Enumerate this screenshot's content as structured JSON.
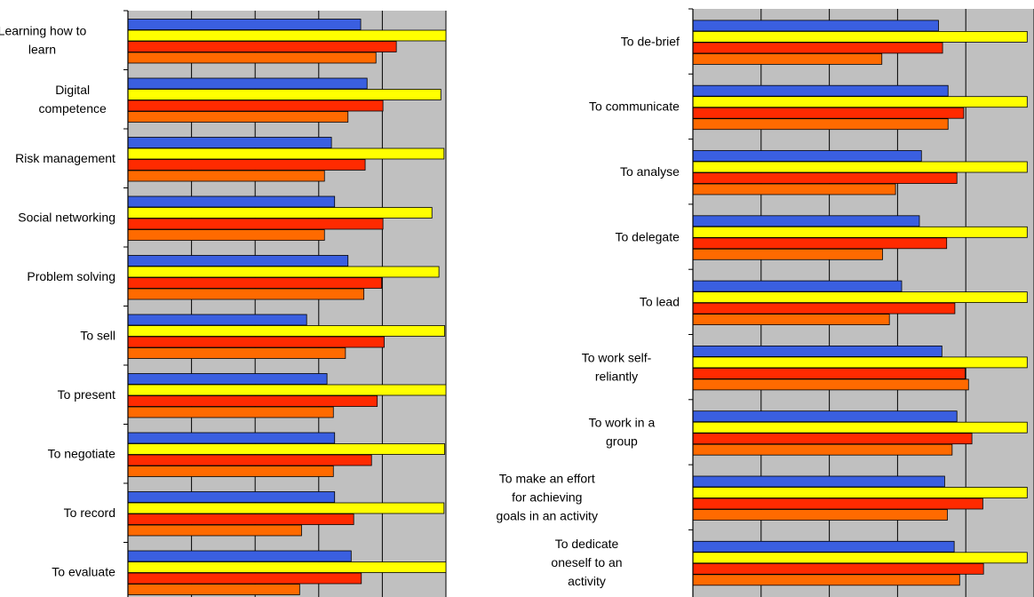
{
  "colors": {
    "plot_bg": "#c0c0c0",
    "grid": "#000000",
    "bar_stroke": "#000000"
  },
  "chart_data": [
    {
      "type": "bar",
      "orientation": "horizontal",
      "grid": true,
      "xlim": [
        0,
        5
      ],
      "series_colors": [
        "#3a5fe0",
        "#ffff00",
        "#ff2a00",
        "#ff6a00"
      ],
      "categories": [
        "Learning how to learn",
        "Digital competence",
        "Risk management",
        "Social networking",
        "Problem solving",
        "To sell",
        "To present",
        "To negotiate",
        "To record",
        "To evaluate"
      ],
      "series": [
        {
          "values": [
            3.66,
            3.76,
            3.2,
            3.25,
            3.46,
            2.81,
            3.13,
            3.25,
            3.25,
            3.51
          ]
        },
        {
          "values": [
            5.0,
            4.92,
            4.97,
            4.78,
            4.89,
            4.98,
            5.0,
            4.98,
            4.97,
            5.0
          ]
        },
        {
          "values": [
            4.22,
            4.01,
            3.73,
            4.01,
            3.99,
            4.03,
            3.92,
            3.83,
            3.55,
            3.67
          ]
        },
        {
          "values": [
            3.9,
            3.46,
            3.09,
            3.09,
            3.71,
            3.42,
            3.23,
            3.23,
            2.73,
            2.7
          ]
        }
      ]
    },
    {
      "type": "bar",
      "orientation": "horizontal",
      "grid": true,
      "xlim": [
        0,
        5
      ],
      "series_colors": [
        "#3a5fe0",
        "#ffff00",
        "#ff2a00",
        "#ff6a00"
      ],
      "categories": [
        "To de-brief",
        "To communicate",
        "To analyse",
        "To delegate",
        "To lead",
        "To work self-reliantly",
        "To work in a group",
        "To make an effort for achieving goals in an activity",
        "To dedicate oneself to an activity"
      ],
      "series": [
        {
          "values": [
            3.6,
            3.74,
            3.35,
            3.32,
            3.06,
            3.65,
            3.87,
            3.69,
            3.83
          ]
        },
        {
          "values": [
            4.9,
            4.9,
            4.9,
            4.9,
            4.9,
            4.9,
            4.9,
            4.9,
            4.9
          ]
        },
        {
          "values": [
            3.66,
            3.97,
            3.87,
            3.72,
            3.84,
            3.99,
            4.09,
            4.25,
            4.26
          ]
        },
        {
          "values": [
            2.77,
            3.74,
            2.97,
            2.78,
            2.88,
            4.04,
            3.8,
            3.73,
            3.91
          ]
        }
      ]
    }
  ],
  "left_labels": [
    [
      "Learning how to",
      "learn"
    ],
    [
      "Digital",
      "competence"
    ],
    [
      "Risk management"
    ],
    [
      "Social networking"
    ],
    [
      "Problem solving"
    ],
    [
      "To sell"
    ],
    [
      "To present"
    ],
    [
      "To negotiate"
    ],
    [
      "To record"
    ],
    [
      "To evaluate"
    ]
  ],
  "right_labels": [
    [
      "To de-brief"
    ],
    [
      "To communicate"
    ],
    [
      "To analyse"
    ],
    [
      "To delegate"
    ],
    [
      "To lead"
    ],
    [
      "To work self-",
      "reliantly"
    ],
    [
      "To work in a",
      "group"
    ],
    [
      "To make an effort",
      "for achieving",
      "goals in an activity"
    ],
    [
      "To dedicate",
      "oneself to an",
      "activity"
    ]
  ]
}
